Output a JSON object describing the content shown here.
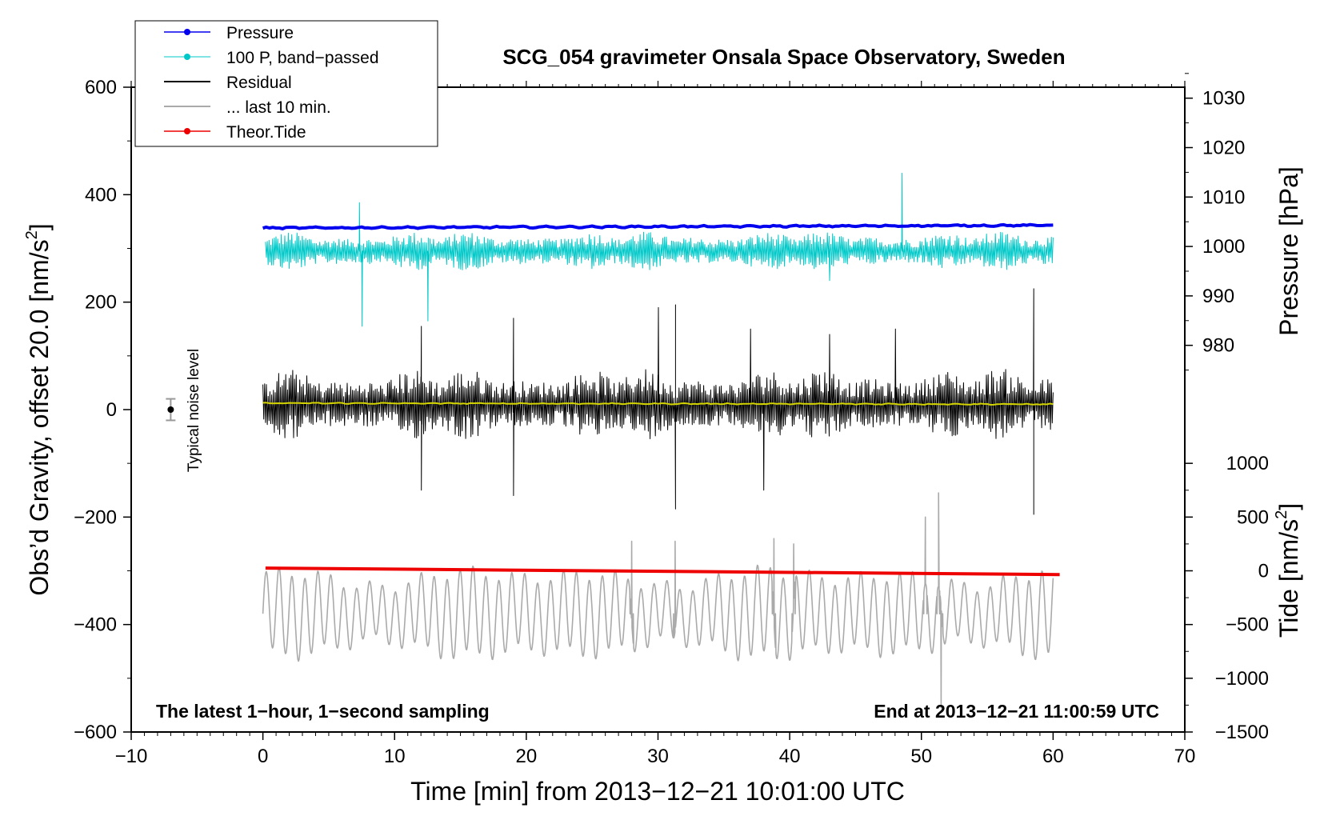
{
  "chart_data": {
    "type": "line",
    "title": "SCG_054 gravimeter Onsala Space Observatory, Sweden",
    "xlabel": "Time [min] from 2013−12−21 10:01:00 UTC",
    "ylabel": "Obs’d Gravity, offset 20.0 [nm/s²]",
    "ylabel_main": "Obs’d Gravity, offset 20.0 [nm/s",
    "ylabel_sup": "2",
    "ylabel_end": "]",
    "xlim": [
      -10,
      70
    ],
    "ylim": [
      -600,
      600
    ],
    "x_ticks": [
      -10,
      0,
      10,
      20,
      30,
      40,
      50,
      60,
      70
    ],
    "x_tick_labels": [
      "−10",
      "0",
      "10",
      "20",
      "30",
      "40",
      "50",
      "60",
      "70"
    ],
    "y_ticks": [
      -600,
      -400,
      -200,
      0,
      200,
      400,
      600
    ],
    "y_tick_labels": [
      "−600",
      "−400",
      "−200",
      "0",
      "200",
      "400",
      "600"
    ],
    "right_axes": [
      {
        "label": "Pressure [hPa]",
        "ticks": [
          980,
          990,
          1000,
          1010,
          1020,
          1030
        ],
        "tick_labels": [
          "980",
          "990",
          "1000",
          "1010",
          "1020",
          "1030"
        ],
        "mapping": {
          "value_at_0": 967,
          "main_per_unit": 9.2
        }
      },
      {
        "label": "Tide [nm/s²]",
        "label_main": "Tide [nm/s",
        "label_sup": "2",
        "label_end": "]",
        "ticks": [
          -1500,
          -1000,
          -500,
          0,
          500,
          1000
        ],
        "tick_labels": [
          "−1500",
          "−1000",
          "−500",
          "0",
          "500",
          "1000"
        ],
        "mapping": {
          "value_at_main_minus300": 0,
          "main_per_unit": 0.2
        }
      }
    ],
    "legend": {
      "placement": "top-left",
      "entries": [
        {
          "label": "Pressure",
          "color": "#0000ee",
          "marker": true
        },
        {
          "label": "100 P, band−passed",
          "color": "#00c8c8",
          "marker": true
        },
        {
          "label": "Residual",
          "color": "#000000",
          "marker": false
        },
        {
          "label": "... last 10 min.",
          "color": "#aaaaaa",
          "marker": false
        },
        {
          "label": "Theor.Tide",
          "color": "#ee0000",
          "marker": true
        }
      ]
    },
    "annotations": {
      "bottom_left": "The latest 1−hour, 1−second sampling",
      "bottom_right": "End at 2013−12−21 11:00:59 UTC",
      "noise_label": "Typical noise level"
    },
    "noise_bar": {
      "x": -7,
      "center": 0,
      "half_range": 20
    },
    "series": [
      {
        "name": "Pressure",
        "color": "#0000ee",
        "kind": "smooth",
        "x_start": 0,
        "x_end": 60,
        "start": 338,
        "end": 343,
        "amplitude": 2
      },
      {
        "name": "100 P, band−passed",
        "color": "#00c8c8",
        "kind": "noise",
        "x_start": 0.2,
        "x_end": 60,
        "center": 295,
        "amplitude": 30,
        "peaks": [
          [
            7.5,
            155
          ],
          [
            48.5,
            440
          ],
          [
            7.3,
            385
          ],
          [
            12.5,
            165
          ],
          [
            43,
            240
          ]
        ]
      },
      {
        "name": "Residual",
        "color": "#000000",
        "kind": "noise",
        "x_start": 0,
        "x_end": 60,
        "center": 10,
        "amplitude": 55,
        "peaks": [
          [
            31.3,
            -185
          ],
          [
            31.3,
            195
          ],
          [
            58.5,
            225
          ],
          [
            58.5,
            -195
          ],
          [
            12,
            155
          ],
          [
            12,
            -150
          ],
          [
            19,
            170
          ],
          [
            19,
            -160
          ],
          [
            30,
            190
          ],
          [
            37,
            150
          ],
          [
            38,
            -150
          ],
          [
            43,
            140
          ],
          [
            48,
            150
          ]
        ]
      },
      {
        "name": "Residual mean",
        "color": "#d4d400",
        "kind": "smooth",
        "x_start": 0,
        "x_end": 60,
        "start": 12,
        "end": 10,
        "amplitude": 1.5
      },
      {
        "name": "... last 10 min.",
        "color": "#aaaaaa",
        "kind": "oscillation",
        "x_start": 0,
        "x_end": 60,
        "center": -380,
        "amplitude": 65,
        "peaks": [
          [
            51.5,
            -555
          ],
          [
            51.3,
            -155
          ],
          [
            50.3,
            -200
          ],
          [
            28,
            -245
          ],
          [
            38.8,
            -240
          ],
          [
            31.3,
            -245
          ],
          [
            40.3,
            -250
          ]
        ]
      },
      {
        "name": "Theor.Tide",
        "color": "#ee0000",
        "kind": "linear",
        "x_start": 0.2,
        "x_end": 60.5,
        "start": -295,
        "end": -307
      }
    ]
  }
}
